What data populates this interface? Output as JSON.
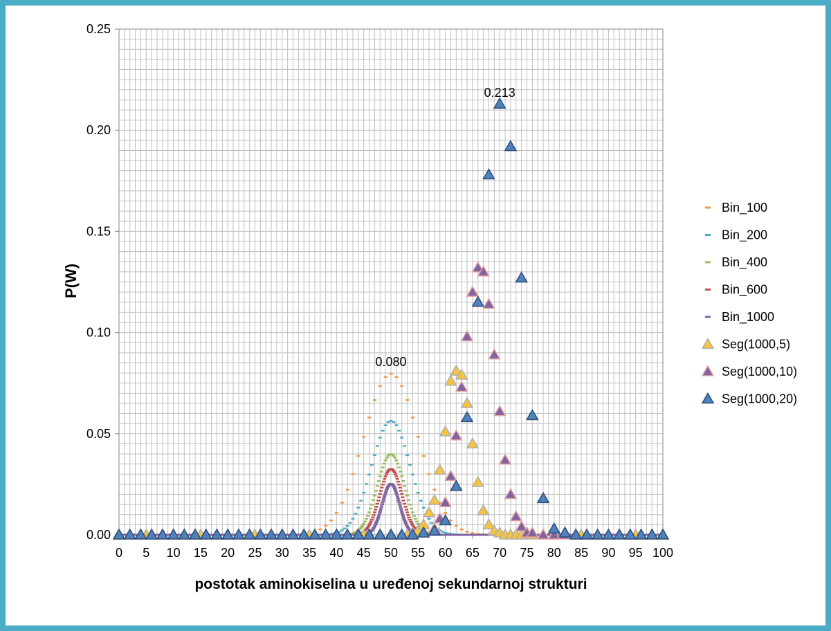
{
  "chart_data": {
    "type": "scatter",
    "title": "",
    "xlabel": "postotak aminokiselina u uređenoj sekundarnoj strukturi",
    "ylabel": "P(W)",
    "xlim": [
      0,
      100
    ],
    "ylim": [
      0,
      0.25
    ],
    "x_ticks": [
      "0",
      "5",
      "10",
      "15",
      "20",
      "25",
      "30",
      "35",
      "40",
      "45",
      "50",
      "55",
      "60",
      "65",
      "70",
      "75",
      "80",
      "85",
      "90",
      "95",
      "100"
    ],
    "y_ticks": [
      "0.00",
      "0.05",
      "0.10",
      "0.15",
      "0.20",
      "0.25"
    ],
    "grid": true,
    "legend_position": "right",
    "annotations": [
      {
        "text": "0.080",
        "x": 50,
        "y": 0.08
      },
      {
        "text": "0.213",
        "x": 70,
        "y": 0.213
      }
    ],
    "series": [
      {
        "name": "Bin_100",
        "kind": "binomial",
        "n": 100,
        "color": "#f79646",
        "marker": "dash"
      },
      {
        "name": "Bin_200",
        "kind": "binomial",
        "n": 200,
        "color": "#4bacc6",
        "marker": "dash"
      },
      {
        "name": "Bin_400",
        "kind": "binomial",
        "n": 400,
        "color": "#9bbb59",
        "marker": "dash"
      },
      {
        "name": "Bin_600",
        "kind": "binomial",
        "n": 600,
        "color": "#c0504d",
        "marker": "dash"
      },
      {
        "name": "Bin_1000",
        "kind": "binomial",
        "n": 1000,
        "color": "#8064a2",
        "marker": "dash"
      },
      {
        "name": "Seg(1000,5)",
        "color": "#f5c242",
        "stroke": "#b0b0b0",
        "marker": "triangle",
        "x": [
          0,
          5,
          10,
          15,
          20,
          25,
          30,
          35,
          40,
          45,
          50,
          52,
          53,
          54,
          55,
          56,
          57,
          58,
          59,
          60,
          61,
          62,
          63,
          64,
          65,
          66,
          67,
          68,
          69,
          70,
          71,
          72,
          73,
          74,
          75,
          76,
          78,
          80,
          85,
          90,
          95,
          100
        ],
        "y": [
          0,
          0,
          0,
          0,
          0,
          0,
          0,
          0,
          0,
          0,
          0,
          0,
          0,
          0.001,
          0.002,
          0.005,
          0.011,
          0.017,
          0.032,
          0.051,
          0.076,
          0.081,
          0.079,
          0.065,
          0.045,
          0.026,
          0.012,
          0.005,
          0.002,
          0.001,
          0,
          0,
          0,
          0,
          0,
          0,
          0,
          0,
          0,
          0,
          0,
          0
        ]
      },
      {
        "name": "Seg(1000,10)",
        "color": "#8064a2",
        "stroke": "#e8a0a0",
        "marker": "triangle",
        "x": [
          0,
          2,
          4,
          6,
          8,
          10,
          12,
          14,
          16,
          18,
          20,
          22,
          24,
          26,
          28,
          30,
          32,
          34,
          36,
          38,
          40,
          42,
          44,
          46,
          48,
          50,
          52,
          54,
          56,
          58,
          59,
          60,
          61,
          62,
          63,
          64,
          65,
          66,
          67,
          68,
          69,
          70,
          71,
          72,
          73,
          74,
          75,
          76,
          78,
          80,
          82,
          84,
          86,
          88,
          90,
          92,
          94,
          96,
          98,
          100
        ],
        "y": [
          0,
          0,
          0,
          0,
          0,
          0,
          0,
          0,
          0,
          0,
          0,
          0,
          0,
          0,
          0,
          0,
          0,
          0,
          0,
          0,
          0,
          0,
          0,
          0,
          0,
          0,
          0,
          0,
          0.001,
          0.003,
          0.008,
          0.016,
          0.029,
          0.049,
          0.073,
          0.098,
          0.12,
          0.132,
          0.13,
          0.114,
          0.089,
          0.061,
          0.037,
          0.02,
          0.009,
          0.004,
          0.001,
          0.001,
          0,
          0,
          0,
          0,
          0,
          0,
          0,
          0,
          0,
          0,
          0,
          0
        ]
      },
      {
        "name": "Seg(1000,20)",
        "color": "#4f81bd",
        "stroke": "#2c4d75",
        "marker": "triangle",
        "x": [
          0,
          2,
          4,
          6,
          8,
          10,
          12,
          14,
          16,
          18,
          20,
          22,
          24,
          26,
          28,
          30,
          32,
          34,
          36,
          38,
          40,
          42,
          44,
          46,
          48,
          50,
          52,
          54,
          56,
          58,
          60,
          62,
          64,
          66,
          68,
          70,
          72,
          74,
          76,
          78,
          80,
          82,
          84,
          86,
          88,
          90,
          92,
          94,
          96,
          98,
          100
        ],
        "y": [
          0,
          0,
          0,
          0,
          0,
          0,
          0,
          0,
          0,
          0,
          0,
          0,
          0,
          0,
          0,
          0,
          0,
          0,
          0,
          0,
          0,
          0,
          0,
          0,
          0,
          0,
          0,
          0,
          0.001,
          0.002,
          0.007,
          0.024,
          0.058,
          0.115,
          0.178,
          0.213,
          0.192,
          0.127,
          0.059,
          0.018,
          0.003,
          0.001,
          0,
          0,
          0,
          0,
          0,
          0,
          0,
          0,
          0
        ]
      }
    ]
  }
}
